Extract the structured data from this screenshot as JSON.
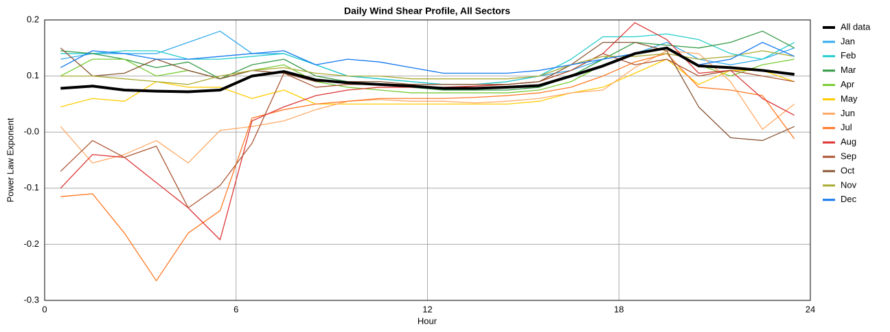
{
  "chart_data": {
    "type": "line",
    "title": "Daily Wind Shear Profile, All Sectors",
    "x_label": "Hour",
    "y_label": "Power Law Exponent",
    "x": [
      0.5,
      1.5,
      2.5,
      3.5,
      4.5,
      5.5,
      6.5,
      7.5,
      8.5,
      9.5,
      10.5,
      11.5,
      12.5,
      13.5,
      14.5,
      15.5,
      16.5,
      17.5,
      18.5,
      19.5,
      20.5,
      21.5,
      22.5,
      23.5
    ],
    "xlim": [
      0,
      24
    ],
    "xticks": [
      0,
      6,
      12,
      18,
      24
    ],
    "ylim": [
      -0.3,
      0.2
    ],
    "yticks": [
      0.2,
      0.1,
      {
        "value": 0,
        "label": "-0.0"
      },
      -0.1,
      -0.2,
      -0.3
    ],
    "grid": true,
    "legend": "right",
    "series": [
      {
        "name": "All data",
        "color": "#000000",
        "values": [
          0.078,
          0.082,
          0.075,
          0.073,
          0.072,
          0.075,
          0.1,
          0.108,
          0.093,
          0.088,
          0.085,
          0.082,
          0.078,
          0.078,
          0.08,
          0.083,
          0.1,
          0.118,
          0.14,
          0.15,
          0.118,
          0.115,
          0.11,
          0.103
        ]
      },
      {
        "name": "Jan",
        "color": "#33aaee",
        "values": [
          0.13,
          0.14,
          0.14,
          0.14,
          0.16,
          0.18,
          0.14,
          0.14,
          0.12,
          0.1,
          0.095,
          0.09,
          0.085,
          0.085,
          0.09,
          0.1,
          0.11,
          0.13,
          0.14,
          0.16,
          0.13,
          0.12,
          0.13,
          0.15
        ]
      },
      {
        "name": "Feb",
        "color": "#22cccc",
        "values": [
          0.14,
          0.14,
          0.145,
          0.145,
          0.13,
          0.13,
          0.135,
          0.14,
          0.12,
          0.1,
          0.095,
          0.09,
          0.085,
          0.085,
          0.09,
          0.1,
          0.13,
          0.17,
          0.17,
          0.175,
          0.165,
          0.14,
          0.13,
          0.16
        ]
      },
      {
        "name": "Mar",
        "color": "#339944",
        "values": [
          0.145,
          0.14,
          0.13,
          0.115,
          0.125,
          0.095,
          0.12,
          0.13,
          0.1,
          0.09,
          0.085,
          0.08,
          0.075,
          0.075,
          0.075,
          0.08,
          0.1,
          0.13,
          0.16,
          0.155,
          0.15,
          0.16,
          0.18,
          0.15
        ]
      },
      {
        "name": "Apr",
        "color": "#77cc33",
        "values": [
          0.1,
          0.13,
          0.13,
          0.1,
          0.11,
          0.095,
          0.11,
          0.12,
          0.09,
          0.08,
          0.075,
          0.07,
          0.07,
          0.07,
          0.07,
          0.075,
          0.09,
          0.12,
          0.14,
          0.15,
          0.12,
          0.1,
          0.12,
          0.13
        ]
      },
      {
        "name": "May",
        "color": "#ffcc00",
        "values": [
          0.045,
          0.06,
          0.055,
          0.09,
          0.08,
          0.08,
          0.06,
          0.075,
          0.05,
          0.05,
          0.05,
          0.05,
          0.05,
          0.05,
          0.05,
          0.055,
          0.07,
          0.08,
          0.105,
          0.13,
          0.085,
          0.11,
          0.11,
          0.09
        ]
      },
      {
        "name": "Jun",
        "color": "#ffaa66",
        "values": [
          0.01,
          -0.055,
          -0.04,
          -0.015,
          -0.055,
          0.003,
          0.01,
          0.02,
          0.04,
          0.055,
          0.058,
          0.055,
          0.055,
          0.052,
          0.055,
          0.06,
          0.07,
          0.075,
          0.115,
          0.145,
          0.14,
          0.09,
          0.005,
          0.05
        ]
      },
      {
        "name": "Jul",
        "color": "#ff7722",
        "values": [
          -0.115,
          -0.11,
          -0.18,
          -0.265,
          -0.18,
          -0.14,
          0.025,
          0.04,
          0.05,
          0.055,
          0.06,
          0.06,
          0.06,
          0.062,
          0.065,
          0.07,
          0.08,
          0.1,
          0.125,
          0.14,
          0.08,
          0.075,
          0.065,
          -0.012
        ]
      },
      {
        "name": "Aug",
        "color": "#dd3333",
        "values": [
          -0.1,
          -0.04,
          -0.045,
          -0.09,
          -0.135,
          -0.192,
          0.02,
          0.045,
          0.065,
          0.075,
          0.08,
          0.08,
          0.08,
          0.082,
          0.085,
          0.09,
          0.11,
          0.14,
          0.195,
          0.165,
          0.105,
          0.11,
          0.06,
          0.03
        ]
      },
      {
        "name": "Sep",
        "color": "#aa5533",
        "values": [
          -0.07,
          -0.015,
          -0.045,
          -0.025,
          -0.135,
          -0.095,
          -0.02,
          0.105,
          0.08,
          0.085,
          0.085,
          0.085,
          0.085,
          0.085,
          0.085,
          0.09,
          0.11,
          0.14,
          0.12,
          0.13,
          0.1,
          0.11,
          0.1,
          0.09
        ]
      },
      {
        "name": "Oct",
        "color": "#885533",
        "values": [
          0.15,
          0.1,
          0.105,
          0.13,
          0.11,
          0.095,
          0.11,
          0.105,
          0.09,
          0.09,
          0.09,
          0.085,
          0.085,
          0.085,
          0.085,
          0.09,
          0.12,
          0.16,
          0.16,
          0.145,
          0.045,
          -0.01,
          -0.015,
          0.01
        ]
      },
      {
        "name": "Nov",
        "color": "#aaaa33",
        "values": [
          0.1,
          0.1,
          0.095,
          0.09,
          0.085,
          0.1,
          0.11,
          0.115,
          0.105,
          0.1,
          0.1,
          0.095,
          0.095,
          0.095,
          0.095,
          0.1,
          0.12,
          0.135,
          0.135,
          0.14,
          0.13,
          0.135,
          0.145,
          0.135
        ]
      },
      {
        "name": "Dec",
        "color": "#1177ee",
        "values": [
          0.115,
          0.145,
          0.14,
          0.13,
          0.13,
          0.135,
          0.14,
          0.145,
          0.12,
          0.13,
          0.125,
          0.115,
          0.105,
          0.105,
          0.105,
          0.11,
          0.12,
          0.13,
          0.14,
          0.15,
          0.12,
          0.13,
          0.16,
          0.135
        ]
      }
    ]
  }
}
